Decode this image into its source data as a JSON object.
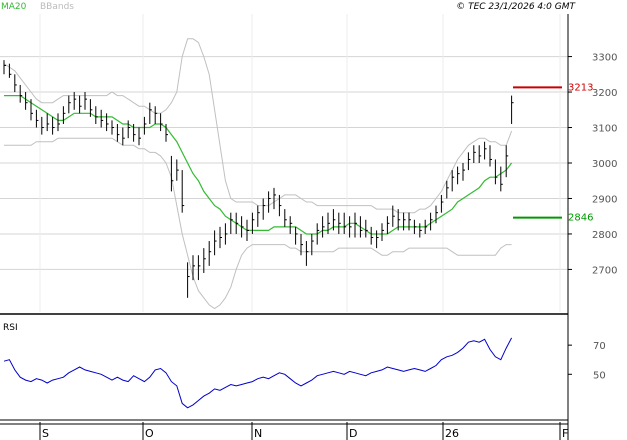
{
  "header": {
    "indicator_1": "MA20",
    "indicator_2": "BBands",
    "copyright": "© TEC 23/1/2026 4:0 GMT"
  },
  "colors": {
    "background": "#ffffff",
    "grid": "#d4d4d4",
    "axis": "#000000",
    "price_bars": "#000000",
    "ma20": "#33bb33",
    "bollinger": "#c0c0c0",
    "rsi_line": "#0000cc",
    "resistance": "#cc0000",
    "support": "#009900",
    "header_text": "#33bb33",
    "header_muted": "#bbbbbb"
  },
  "chart_data": [
    {
      "type": "ohlc",
      "name": "price",
      "ylim": [
        2580,
        3420
      ],
      "y_ticks": [
        2700,
        2800,
        2900,
        3000,
        3100,
        3200,
        3300
      ],
      "x_labels": [
        "S",
        "O",
        "N",
        "D",
        "26",
        "F"
      ],
      "grid": true,
      "points": [
        {
          "hi": 3290,
          "lo": 3250,
          "c": 3275
        },
        {
          "hi": 3280,
          "lo": 3240,
          "c": 3250
        },
        {
          "hi": 3250,
          "lo": 3200,
          "c": 3220
        },
        {
          "hi": 3220,
          "lo": 3170,
          "c": 3190
        },
        {
          "hi": 3200,
          "lo": 3150,
          "c": 3170
        },
        {
          "hi": 3180,
          "lo": 3120,
          "c": 3140
        },
        {
          "hi": 3150,
          "lo": 3100,
          "c": 3120
        },
        {
          "hi": 3130,
          "lo": 3080,
          "c": 3100
        },
        {
          "hi": 3140,
          "lo": 3090,
          "c": 3110
        },
        {
          "hi": 3130,
          "lo": 3080,
          "c": 3100
        },
        {
          "hi": 3140,
          "lo": 3090,
          "c": 3110
        },
        {
          "hi": 3160,
          "lo": 3110,
          "c": 3140
        },
        {
          "hi": 3190,
          "lo": 3140,
          "c": 3170
        },
        {
          "hi": 3200,
          "lo": 3150,
          "c": 3180
        },
        {
          "hi": 3190,
          "lo": 3140,
          "c": 3160
        },
        {
          "hi": 3200,
          "lo": 3150,
          "c": 3180
        },
        {
          "hi": 3180,
          "lo": 3130,
          "c": 3150
        },
        {
          "hi": 3160,
          "lo": 3110,
          "c": 3130
        },
        {
          "hi": 3150,
          "lo": 3100,
          "c": 3120
        },
        {
          "hi": 3140,
          "lo": 3090,
          "c": 3110
        },
        {
          "hi": 3120,
          "lo": 3080,
          "c": 3100
        },
        {
          "hi": 3110,
          "lo": 3060,
          "c": 3080
        },
        {
          "hi": 3100,
          "lo": 3050,
          "c": 3070
        },
        {
          "hi": 3120,
          "lo": 3070,
          "c": 3100
        },
        {
          "hi": 3110,
          "lo": 3060,
          "c": 3080
        },
        {
          "hi": 3100,
          "lo": 3050,
          "c": 3070
        },
        {
          "hi": 3130,
          "lo": 3080,
          "c": 3110
        },
        {
          "hi": 3170,
          "lo": 3110,
          "c": 3150
        },
        {
          "hi": 3160,
          "lo": 3110,
          "c": 3140
        },
        {
          "hi": 3140,
          "lo": 3090,
          "c": 3110
        },
        {
          "hi": 3110,
          "lo": 3060,
          "c": 3080
        },
        {
          "hi": 3020,
          "lo": 2920,
          "c": 2950
        },
        {
          "hi": 3010,
          "lo": 2950,
          "c": 2980
        },
        {
          "hi": 2980,
          "lo": 2860,
          "c": 2880
        },
        {
          "hi": 2720,
          "lo": 2620,
          "c": 2680
        },
        {
          "hi": 2740,
          "lo": 2670,
          "c": 2710
        },
        {
          "hi": 2740,
          "lo": 2670,
          "c": 2710
        },
        {
          "hi": 2760,
          "lo": 2690,
          "c": 2730
        },
        {
          "hi": 2780,
          "lo": 2710,
          "c": 2750
        },
        {
          "hi": 2810,
          "lo": 2740,
          "c": 2780
        },
        {
          "hi": 2820,
          "lo": 2760,
          "c": 2790
        },
        {
          "hi": 2830,
          "lo": 2770,
          "c": 2800
        },
        {
          "hi": 2860,
          "lo": 2800,
          "c": 2840
        },
        {
          "hi": 2860,
          "lo": 2800,
          "c": 2830
        },
        {
          "hi": 2850,
          "lo": 2790,
          "c": 2820
        },
        {
          "hi": 2840,
          "lo": 2780,
          "c": 2810
        },
        {
          "hi": 2860,
          "lo": 2800,
          "c": 2840
        },
        {
          "hi": 2880,
          "lo": 2820,
          "c": 2860
        },
        {
          "hi": 2900,
          "lo": 2840,
          "c": 2880
        },
        {
          "hi": 2920,
          "lo": 2860,
          "c": 2900
        },
        {
          "hi": 2930,
          "lo": 2870,
          "c": 2910
        },
        {
          "hi": 2910,
          "lo": 2850,
          "c": 2880
        },
        {
          "hi": 2870,
          "lo": 2820,
          "c": 2840
        },
        {
          "hi": 2850,
          "lo": 2800,
          "c": 2830
        },
        {
          "hi": 2820,
          "lo": 2770,
          "c": 2800
        },
        {
          "hi": 2800,
          "lo": 2740,
          "c": 2770
        },
        {
          "hi": 2780,
          "lo": 2710,
          "c": 2750
        },
        {
          "hi": 2800,
          "lo": 2740,
          "c": 2780
        },
        {
          "hi": 2830,
          "lo": 2770,
          "c": 2810
        },
        {
          "hi": 2850,
          "lo": 2790,
          "c": 2820
        },
        {
          "hi": 2860,
          "lo": 2800,
          "c": 2830
        },
        {
          "hi": 2870,
          "lo": 2810,
          "c": 2840
        },
        {
          "hi": 2860,
          "lo": 2800,
          "c": 2830
        },
        {
          "hi": 2860,
          "lo": 2800,
          "c": 2820
        },
        {
          "hi": 2850,
          "lo": 2790,
          "c": 2820
        },
        {
          "hi": 2860,
          "lo": 2790,
          "c": 2830
        },
        {
          "hi": 2850,
          "lo": 2790,
          "c": 2810
        },
        {
          "hi": 2840,
          "lo": 2790,
          "c": 2810
        },
        {
          "hi": 2820,
          "lo": 2770,
          "c": 2790
        },
        {
          "hi": 2810,
          "lo": 2760,
          "c": 2790
        },
        {
          "hi": 2830,
          "lo": 2780,
          "c": 2810
        },
        {
          "hi": 2850,
          "lo": 2800,
          "c": 2830
        },
        {
          "hi": 2880,
          "lo": 2820,
          "c": 2850
        },
        {
          "hi": 2870,
          "lo": 2810,
          "c": 2840
        },
        {
          "hi": 2860,
          "lo": 2810,
          "c": 2840
        },
        {
          "hi": 2860,
          "lo": 2810,
          "c": 2840
        },
        {
          "hi": 2840,
          "lo": 2800,
          "c": 2820
        },
        {
          "hi": 2830,
          "lo": 2790,
          "c": 2810
        },
        {
          "hi": 2840,
          "lo": 2800,
          "c": 2820
        },
        {
          "hi": 2860,
          "lo": 2810,
          "c": 2840
        },
        {
          "hi": 2880,
          "lo": 2830,
          "c": 2860
        },
        {
          "hi": 2910,
          "lo": 2860,
          "c": 2890
        },
        {
          "hi": 2950,
          "lo": 2900,
          "c": 2930
        },
        {
          "hi": 2980,
          "lo": 2920,
          "c": 2960
        },
        {
          "hi": 2990,
          "lo": 2940,
          "c": 2970
        },
        {
          "hi": 3000,
          "lo": 2950,
          "c": 2980
        },
        {
          "hi": 3030,
          "lo": 2980,
          "c": 3010
        },
        {
          "hi": 3050,
          "lo": 3000,
          "c": 3030
        },
        {
          "hi": 3050,
          "lo": 3000,
          "c": 3020
        },
        {
          "hi": 3060,
          "lo": 3010,
          "c": 3040
        },
        {
          "hi": 3050,
          "lo": 2990,
          "c": 3010
        },
        {
          "hi": 3010,
          "lo": 2940,
          "c": 2960
        },
        {
          "hi": 2990,
          "lo": 2920,
          "c": 2940
        },
        {
          "hi": 3050,
          "lo": 2960,
          "c": 3020
        },
        {
          "hi": 3190,
          "lo": 3110,
          "c": 3170
        }
      ],
      "ma20": [
        3190,
        3190,
        3190,
        3190,
        3180,
        3170,
        3160,
        3150,
        3140,
        3130,
        3120,
        3120,
        3130,
        3140,
        3140,
        3140,
        3140,
        3130,
        3130,
        3130,
        3130,
        3120,
        3110,
        3110,
        3100,
        3100,
        3100,
        3100,
        3110,
        3110,
        3100,
        3080,
        3060,
        3030,
        3000,
        2970,
        2950,
        2920,
        2900,
        2880,
        2870,
        2850,
        2840,
        2830,
        2820,
        2810,
        2810,
        2810,
        2810,
        2810,
        2820,
        2820,
        2820,
        2820,
        2820,
        2810,
        2800,
        2800,
        2800,
        2810,
        2810,
        2820,
        2820,
        2820,
        2830,
        2830,
        2820,
        2810,
        2800,
        2800,
        2800,
        2800,
        2810,
        2820,
        2820,
        2820,
        2820,
        2820,
        2820,
        2830,
        2840,
        2850,
        2860,
        2870,
        2890,
        2900,
        2910,
        2920,
        2930,
        2950,
        2960,
        2960,
        2970,
        2980,
        3000
      ],
      "bb_upper": [
        3280,
        3270,
        3260,
        3240,
        3220,
        3200,
        3180,
        3170,
        3170,
        3170,
        3180,
        3190,
        3190,
        3190,
        3190,
        3190,
        3190,
        3190,
        3190,
        3190,
        3200,
        3190,
        3190,
        3180,
        3170,
        3160,
        3160,
        3150,
        3140,
        3140,
        3150,
        3170,
        3200,
        3300,
        3350,
        3350,
        3340,
        3300,
        3250,
        3150,
        3050,
        2950,
        2900,
        2890,
        2890,
        2890,
        2890,
        2880,
        2880,
        2880,
        2890,
        2900,
        2910,
        2910,
        2910,
        2900,
        2890,
        2890,
        2880,
        2880,
        2880,
        2880,
        2880,
        2880,
        2880,
        2880,
        2880,
        2880,
        2880,
        2870,
        2870,
        2870,
        2870,
        2860,
        2860,
        2860,
        2860,
        2870,
        2870,
        2880,
        2900,
        2920,
        2950,
        2980,
        3010,
        3030,
        3050,
        3060,
        3070,
        3070,
        3060,
        3060,
        3050,
        3050,
        3090
      ],
      "bb_lower": [
        3050,
        3050,
        3050,
        3050,
        3050,
        3050,
        3060,
        3060,
        3060,
        3060,
        3070,
        3070,
        3070,
        3070,
        3070,
        3070,
        3070,
        3070,
        3070,
        3070,
        3070,
        3060,
        3050,
        3050,
        3050,
        3040,
        3040,
        3030,
        3030,
        3020,
        3000,
        2960,
        2880,
        2800,
        2740,
        2680,
        2640,
        2620,
        2600,
        2590,
        2600,
        2620,
        2650,
        2700,
        2740,
        2760,
        2770,
        2770,
        2770,
        2770,
        2770,
        2770,
        2770,
        2760,
        2760,
        2750,
        2750,
        2750,
        2750,
        2750,
        2750,
        2750,
        2760,
        2760,
        2760,
        2760,
        2760,
        2760,
        2760,
        2750,
        2740,
        2740,
        2750,
        2750,
        2750,
        2760,
        2760,
        2760,
        2760,
        2760,
        2760,
        2760,
        2760,
        2750,
        2740,
        2740,
        2740,
        2740,
        2740,
        2740,
        2740,
        2740,
        2760,
        2770,
        2770
      ],
      "lines": [
        {
          "kind": "resistance",
          "value": 3213,
          "label": "3213"
        },
        {
          "kind": "support",
          "value": 2846,
          "label": "2846"
        }
      ]
    },
    {
      "type": "line",
      "name": "RSI",
      "title": "RSI",
      "ylim": [
        20,
        90
      ],
      "y_ticks": [
        50,
        70
      ],
      "grid": false,
      "values": [
        59,
        60,
        53,
        48,
        46,
        45,
        47,
        46,
        44,
        46,
        47,
        48,
        51,
        53,
        55,
        53,
        52,
        51,
        50,
        48,
        46,
        48,
        46,
        45,
        49,
        47,
        45,
        48,
        53,
        54,
        51,
        45,
        42,
        30,
        27,
        29,
        32,
        35,
        37,
        40,
        39,
        41,
        43,
        42,
        43,
        44,
        45,
        47,
        48,
        47,
        49,
        51,
        50,
        47,
        44,
        42,
        44,
        46,
        49,
        50,
        51,
        52,
        51,
        50,
        52,
        51,
        50,
        49,
        51,
        52,
        53,
        55,
        54,
        53,
        52,
        53,
        54,
        53,
        52,
        54,
        56,
        60,
        62,
        63,
        65,
        68,
        72,
        73,
        72,
        74,
        67,
        62,
        60,
        68,
        75
      ]
    }
  ]
}
